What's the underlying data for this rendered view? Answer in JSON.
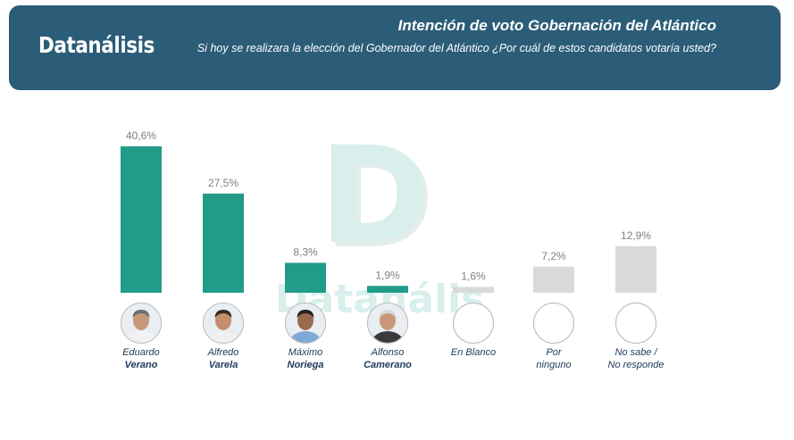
{
  "header": {
    "brand": "Datanálisis",
    "title": "Intención de voto Gobernación del Atlántico",
    "subtitle": "Si hoy se realizara la elección del Gobernador del Atlántico ¿Por cuál de estos candidatos votaría usted?"
  },
  "watermark": {
    "letter": "D",
    "text": "Datanálisis"
  },
  "colors": {
    "header_bg": "#2b5d78",
    "candidate_bar": "#209c89",
    "other_bar": "#d9d9d9",
    "label": "#7f7f7f"
  },
  "chart_data": {
    "type": "bar",
    "categories": [
      "Eduardo Verano",
      "Alfredo Varela",
      "Máximo Noriega",
      "Alfonso Camerano",
      "En Blanco",
      "Por ninguno",
      "No sabe / No responde"
    ],
    "values": [
      40.6,
      27.5,
      8.3,
      1.9,
      1.6,
      7.2,
      12.9
    ],
    "value_labels": [
      "40,6%",
      "27,5%",
      "8,3%",
      "1,9%",
      "1,6%",
      "7,2%",
      "12,9%"
    ],
    "ylim": [
      0,
      41
    ]
  },
  "candidates": [
    {
      "first": "Eduardo",
      "last": "Verano",
      "photo": "candidate-photo",
      "skin": "#c79779",
      "hair": "#6e6e6e",
      "shirt": "#f2f2f2"
    },
    {
      "first": "Alfredo",
      "last": "Varela",
      "photo": "candidate-photo",
      "skin": "#c48d6c",
      "hair": "#3a2b22",
      "shirt": "#f0f0f0"
    },
    {
      "first": "Máximo",
      "last": "Noriega",
      "photo": "candidate-photo",
      "skin": "#9a6a4c",
      "hair": "#2a2220",
      "shirt": "#7fa8d4"
    },
    {
      "first": "Alfonso",
      "last": "Camerano",
      "photo": "candidate-photo",
      "skin": "#c9977a",
      "hair": "#d9d9d9",
      "shirt": "#3a3a3a"
    },
    {
      "first": "En Blanco",
      "last": ""
    },
    {
      "first": "Por",
      "last": "ninguno"
    },
    {
      "first": "No sabe /",
      "last": "No responde"
    }
  ]
}
